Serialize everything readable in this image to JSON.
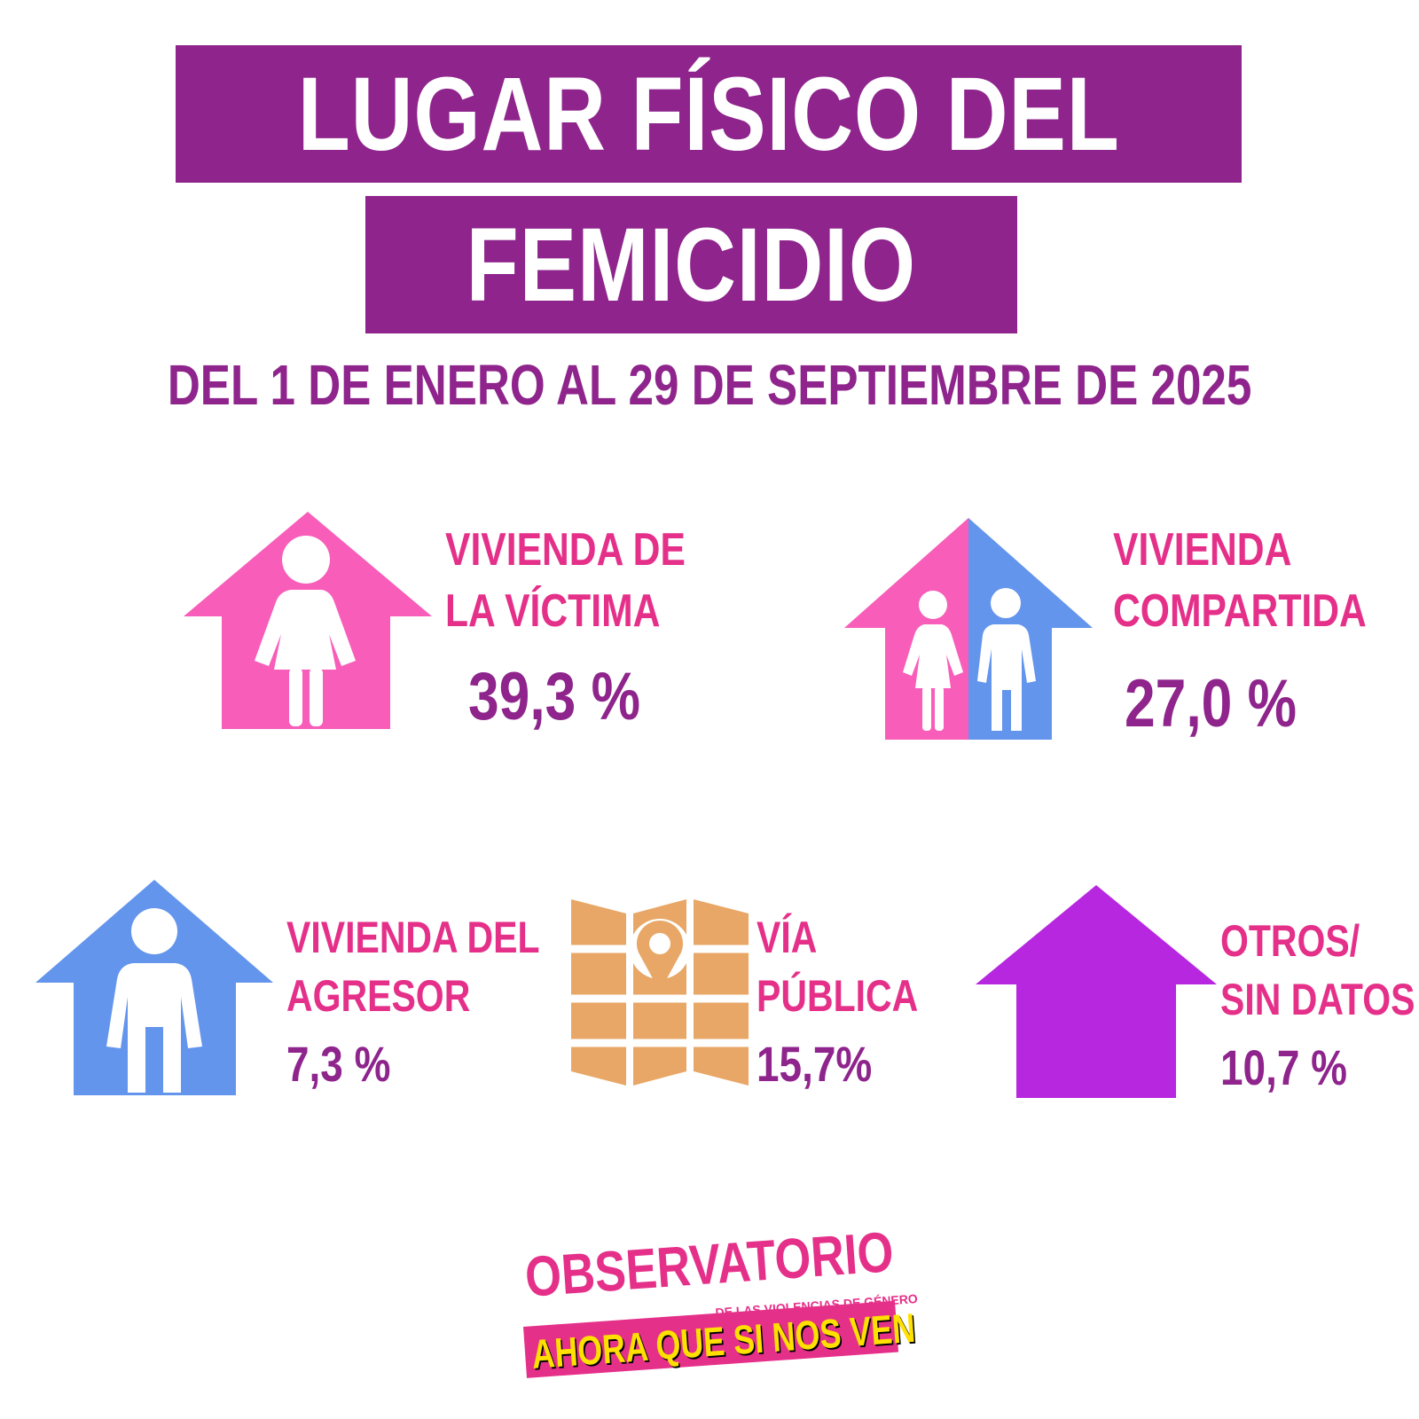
{
  "title": {
    "line1": "LUGAR FÍSICO DEL",
    "line2": "FEMICIDIO",
    "subtitle": "DEL 1 DE ENERO AL 29 DE SEPTIEMBRE DE 2025"
  },
  "colors": {
    "purple": "#8e248c",
    "pink": "#e5308a",
    "pink_house": "#f85db9",
    "blue_house": "#6495ed",
    "orange_map": "#e8a766",
    "violet_house": "#b727e0"
  },
  "items": [
    {
      "icon": "house-woman-icon",
      "label_line1": "VIVIENDA DE",
      "label_line2": "LA VÍCTIMA",
      "value": "39,3 %",
      "percent": 39.3
    },
    {
      "icon": "house-shared-icon",
      "label_line1": "VIVIENDA",
      "label_line2": "COMPARTIDA",
      "value": "27,0 %",
      "percent": 27.0
    },
    {
      "icon": "house-man-icon",
      "label_line1": "VIVIENDA DEL",
      "label_line2": "AGRESOR",
      "value": "7,3 %",
      "percent": 7.3
    },
    {
      "icon": "map-pin-icon",
      "label_line1": "VÍA",
      "label_line2": "PÚBLICA",
      "value": "15,7%",
      "percent": 15.7
    },
    {
      "icon": "house-empty-icon",
      "label_line1": "OTROS/",
      "label_line2": "SIN DATOS",
      "value": "10,7 %",
      "percent": 10.7
    }
  ],
  "logo": {
    "top": "OBSERVATORIO",
    "sub": "DE LAS VIOLENCIAS DE GÉNERO",
    "bottom": "AHORA QUE SI NOS VEN"
  }
}
